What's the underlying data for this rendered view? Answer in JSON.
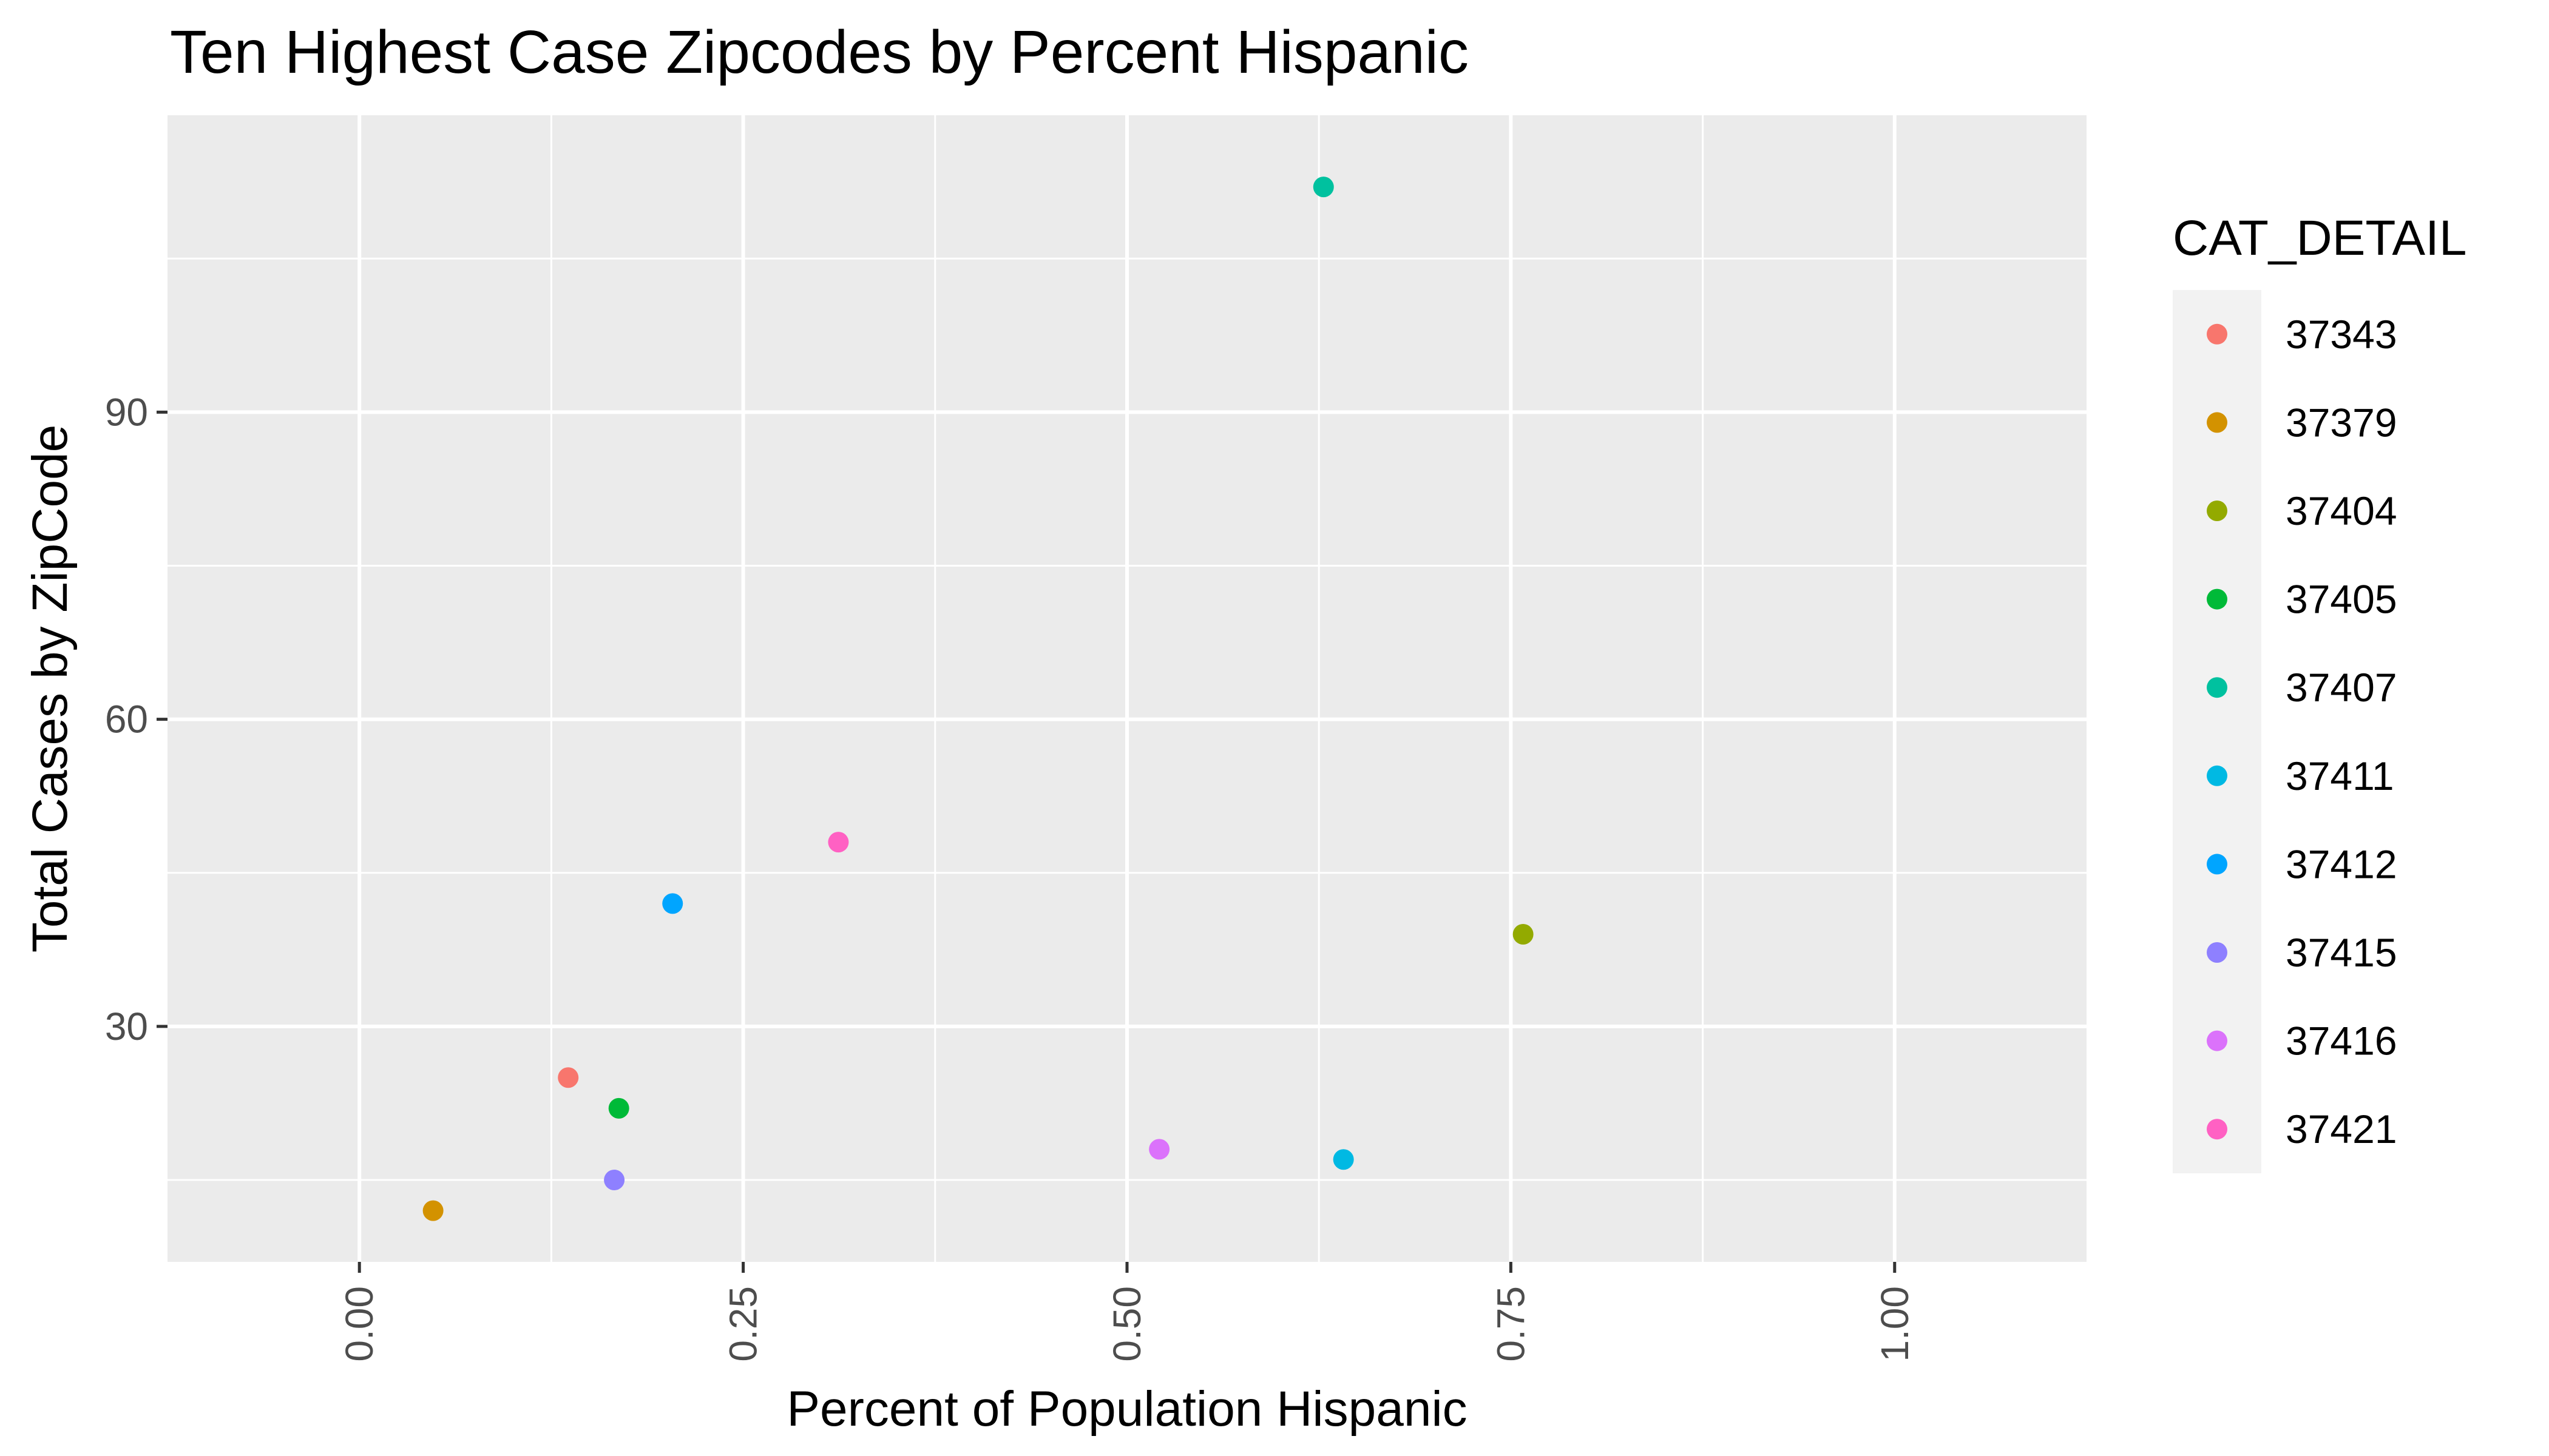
{
  "chart_data": {
    "type": "scatter",
    "title": "Ten Highest Case Zipcodes by Percent Hispanic",
    "xlabel": "Percent of Population Hispanic",
    "ylabel": "Total Cases by ZipCode",
    "xlim": [
      -0.125,
      1.125
    ],
    "ylim": [
      7,
      119
    ],
    "x_ticks": [
      0.0,
      0.25,
      0.5,
      0.75,
      1.0
    ],
    "x_tick_labels": [
      "0.00",
      "0.25",
      "0.50",
      "0.75",
      "1.00"
    ],
    "y_ticks": [
      30,
      60,
      90
    ],
    "y_tick_labels": [
      "30",
      "60",
      "90"
    ],
    "grid": true,
    "legend": {
      "title": "CAT_DETAIL",
      "placement": "right"
    },
    "series": [
      {
        "name": "37343",
        "color": "#F8766D",
        "x": 0.136,
        "y": 25
      },
      {
        "name": "37379",
        "color": "#D39200",
        "x": 0.048,
        "y": 12
      },
      {
        "name": "37404",
        "color": "#93AA00",
        "x": 0.758,
        "y": 39
      },
      {
        "name": "37405",
        "color": "#00BA38",
        "x": 0.169,
        "y": 22
      },
      {
        "name": "37407",
        "color": "#00C19F",
        "x": 0.628,
        "y": 112
      },
      {
        "name": "37411",
        "color": "#00B9E3",
        "x": 0.641,
        "y": 17
      },
      {
        "name": "37412",
        "color": "#00A5FF",
        "x": 0.204,
        "y": 42
      },
      {
        "name": "37415",
        "color": "#8E80FF",
        "x": 0.166,
        "y": 15
      },
      {
        "name": "37416",
        "color": "#DB72FB",
        "x": 0.521,
        "y": 18
      },
      {
        "name": "37421",
        "color": "#FF61C3",
        "x": 0.312,
        "y": 48
      }
    ]
  },
  "colors": {
    "panel_background": "#EBEBEB",
    "grid_major": "#FFFFFF",
    "legend_key_background": "#F2F2F2"
  }
}
